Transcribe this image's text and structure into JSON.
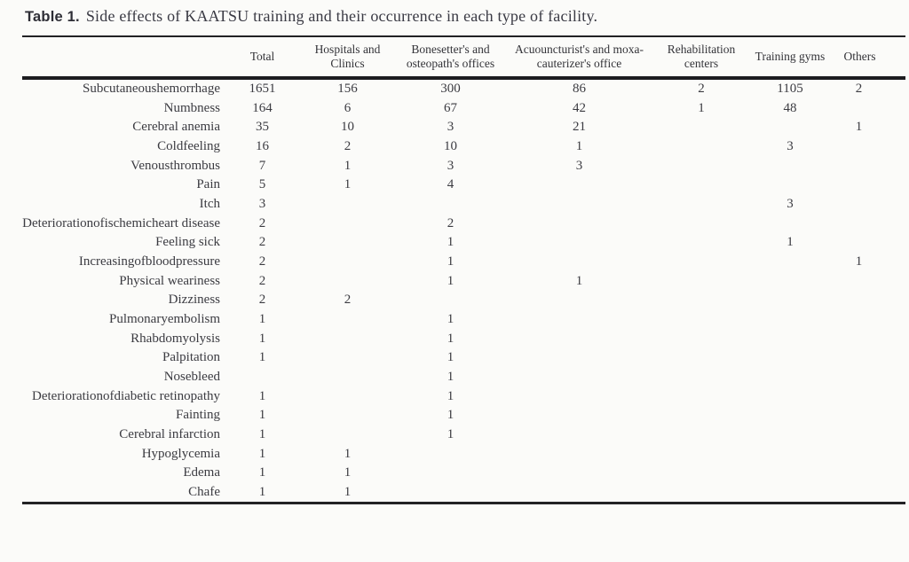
{
  "title": {
    "label": "Table 1.",
    "text": "Side effects of KAATSU training and their occurrence in each type of facility."
  },
  "table": {
    "columns": [
      "",
      "Total",
      "Hospitals and Clinics",
      "Bonesetter's and osteopath's offices",
      "Acuouncturist's and moxa-cauterizer's office",
      "Rehabilitation centers",
      "Training gyms",
      "Others"
    ],
    "rows": [
      {
        "label": "Subcutaneoushemorrhage",
        "values": [
          "1651",
          "156",
          "300",
          "86",
          "2",
          "1105",
          "2"
        ]
      },
      {
        "label": "Numbness",
        "values": [
          "164",
          "6",
          "67",
          "42",
          "1",
          "48",
          ""
        ]
      },
      {
        "label": "Cerebral anemia",
        "values": [
          "35",
          "10",
          "3",
          "21",
          "",
          "",
          "1"
        ]
      },
      {
        "label": "Coldfeeling",
        "values": [
          "16",
          "2",
          "10",
          "1",
          "",
          "3",
          ""
        ]
      },
      {
        "label": "Venousthrombus",
        "values": [
          "7",
          "1",
          "3",
          "3",
          "",
          "",
          ""
        ]
      },
      {
        "label": "Pain",
        "values": [
          "5",
          "1",
          "4",
          "",
          "",
          "",
          ""
        ]
      },
      {
        "label": "Itch",
        "values": [
          "3",
          "",
          "",
          "",
          "",
          "3",
          ""
        ]
      },
      {
        "label": "Deteriorationofischemicheart disease",
        "values": [
          "2",
          "",
          "2",
          "",
          "",
          "",
          ""
        ]
      },
      {
        "label": "Feeling sick",
        "values": [
          "2",
          "",
          "1",
          "",
          "",
          "1",
          ""
        ]
      },
      {
        "label": "Increasingofbloodpressure",
        "values": [
          "2",
          "",
          "1",
          "",
          "",
          "",
          "1"
        ]
      },
      {
        "label": "Physical weariness",
        "values": [
          "2",
          "",
          "1",
          "1",
          "",
          "",
          ""
        ]
      },
      {
        "label": "Dizziness",
        "values": [
          "2",
          "2",
          "",
          "",
          "",
          "",
          ""
        ]
      },
      {
        "label": "Pulmonaryembolism",
        "values": [
          "1",
          "",
          "1",
          "",
          "",
          "",
          ""
        ]
      },
      {
        "label": "Rhabdomyolysis",
        "values": [
          "1",
          "",
          "1",
          "",
          "",
          "",
          ""
        ]
      },
      {
        "label": "Palpitation",
        "values": [
          "1",
          "",
          "1",
          "",
          "",
          "",
          ""
        ]
      },
      {
        "label": "Nosebleed",
        "values": [
          "",
          "",
          "1",
          "",
          "",
          "",
          ""
        ]
      },
      {
        "label": "Deteriorationofdiabetic retinopathy",
        "values": [
          "1",
          "",
          "1",
          "",
          "",
          "",
          ""
        ]
      },
      {
        "label": "Fainting",
        "values": [
          "1",
          "",
          "1",
          "",
          "",
          "",
          ""
        ]
      },
      {
        "label": "Cerebral infarction",
        "values": [
          "1",
          "",
          "1",
          "",
          "",
          "",
          ""
        ]
      },
      {
        "label": "Hypoglycemia",
        "values": [
          "1",
          "1",
          "",
          "",
          "",
          "",
          ""
        ]
      },
      {
        "label": "Edema",
        "values": [
          "1",
          "1",
          "",
          "",
          "",
          "",
          ""
        ]
      },
      {
        "label": "Chafe",
        "values": [
          "1",
          "1",
          "",
          "",
          "",
          "",
          ""
        ]
      }
    ]
  }
}
